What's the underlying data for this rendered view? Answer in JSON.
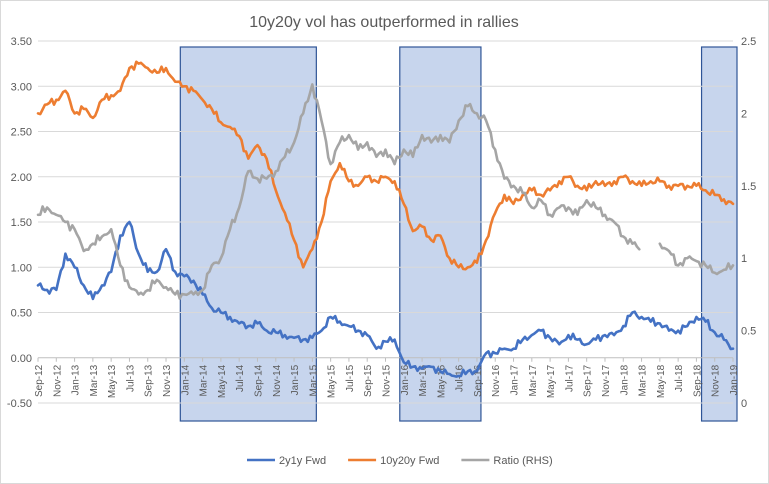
{
  "chart_data": {
    "type": "line",
    "title": "10y20y vol has outperformed  in rallies",
    "xlabel": "",
    "ylabel": "",
    "ylim_left": [
      -0.5,
      3.5
    ],
    "ylim_right": [
      0,
      2.5
    ],
    "y_ticks_left": [
      "-0.50",
      "0.00",
      "0.50",
      "1.00",
      "1.50",
      "2.00",
      "2.50",
      "3.00",
      "3.50"
    ],
    "y_ticks_right": [
      "0",
      "0.5",
      "1",
      "1.5",
      "2",
      "2.5"
    ],
    "x_ticks": [
      "Sep-12",
      "Nov-12",
      "Jan-13",
      "Mar-13",
      "May-13",
      "Jul-13",
      "Sep-13",
      "Nov-13",
      "Jan-14",
      "Mar-14",
      "May-14",
      "Jul-14",
      "Sep-14",
      "Nov-14",
      "Jan-15",
      "Mar-15",
      "May-15",
      "Jul-15",
      "Sep-15",
      "Nov-15",
      "Jan-16",
      "Mar-16",
      "May-16",
      "Jul-16",
      "Sep-16",
      "Nov-16",
      "Jan-17",
      "Mar-17",
      "May-17",
      "Jul-17",
      "Sep-17",
      "Nov-17",
      "Jan-18",
      "Mar-18",
      "May-18",
      "Jul-18",
      "Sep-18",
      "Nov-18",
      "Jan-19"
    ],
    "grid": true,
    "legend_position": "bottom",
    "shaded_periods": [
      [
        "Jan-14",
        "Mar-15"
      ],
      [
        "Jan-16",
        "Sep-16"
      ],
      [
        "Oct-18",
        "Jan-19"
      ]
    ],
    "series": [
      {
        "name": "2y1y Fwd",
        "axis": "left",
        "color": "#4472c4",
        "points": [
          [
            "Sep-12",
            0.8
          ],
          [
            "Oct-12",
            0.75
          ],
          [
            "Nov-12",
            0.75
          ],
          [
            "Dec-12",
            1.15
          ],
          [
            "Jan-13",
            1.0
          ],
          [
            "Feb-13",
            0.8
          ],
          [
            "Mar-13",
            0.65
          ],
          [
            "Apr-13",
            0.8
          ],
          [
            "May-13",
            0.95
          ],
          [
            "Jun-13",
            1.35
          ],
          [
            "Jul-13",
            1.5
          ],
          [
            "Aug-13",
            1.15
          ],
          [
            "Sep-13",
            0.95
          ],
          [
            "Oct-13",
            0.95
          ],
          [
            "Nov-13",
            1.2
          ],
          [
            "Dec-13",
            0.95
          ],
          [
            "Jan-14",
            0.9
          ],
          [
            "Feb-14",
            0.85
          ],
          [
            "Mar-14",
            0.7
          ],
          [
            "Apr-14",
            0.55
          ],
          [
            "May-14",
            0.5
          ],
          [
            "Jun-14",
            0.45
          ],
          [
            "Jul-14",
            0.38
          ],
          [
            "Aug-14",
            0.35
          ],
          [
            "Sep-14",
            0.38
          ],
          [
            "Oct-14",
            0.3
          ],
          [
            "Nov-14",
            0.28
          ],
          [
            "Dec-14",
            0.25
          ],
          [
            "Jan-15",
            0.22
          ],
          [
            "Feb-15",
            0.2
          ],
          [
            "Mar-15",
            0.22
          ],
          [
            "Apr-15",
            0.3
          ],
          [
            "May-15",
            0.45
          ],
          [
            "Jun-15",
            0.4
          ],
          [
            "Jul-15",
            0.35
          ],
          [
            "Aug-15",
            0.3
          ],
          [
            "Sep-15",
            0.25
          ],
          [
            "Oct-15",
            0.1
          ],
          [
            "Nov-15",
            0.18
          ],
          [
            "Dec-15",
            0.2
          ],
          [
            "Jan-16",
            -0.05
          ],
          [
            "Feb-16",
            -0.1
          ],
          [
            "Mar-16",
            -0.12
          ],
          [
            "Apr-16",
            -0.1
          ],
          [
            "May-16",
            -0.15
          ],
          [
            "Jun-16",
            -0.18
          ],
          [
            "Jul-16",
            -0.2
          ],
          [
            "Aug-16",
            -0.15
          ],
          [
            "Sep-16",
            -0.15
          ],
          [
            "Oct-16",
            0.05
          ],
          [
            "Nov-16",
            0.05
          ],
          [
            "Dec-16",
            0.1
          ],
          [
            "Jan-17",
            0.1
          ],
          [
            "Feb-17",
            0.2
          ],
          [
            "Mar-17",
            0.25
          ],
          [
            "Apr-17",
            0.3
          ],
          [
            "May-17",
            0.22
          ],
          [
            "Jun-17",
            0.15
          ],
          [
            "Jul-17",
            0.25
          ],
          [
            "Aug-17",
            0.2
          ],
          [
            "Sep-17",
            0.15
          ],
          [
            "Oct-17",
            0.2
          ],
          [
            "Nov-17",
            0.25
          ],
          [
            "Dec-17",
            0.25
          ],
          [
            "Jan-18",
            0.35
          ],
          [
            "Feb-18",
            0.5
          ],
          [
            "Mar-18",
            0.45
          ],
          [
            "Apr-18",
            0.4
          ],
          [
            "May-18",
            0.38
          ],
          [
            "Jun-18",
            0.3
          ],
          [
            "Jul-18",
            0.3
          ],
          [
            "Aug-18",
            0.35
          ],
          [
            "Sep-18",
            0.45
          ],
          [
            "Oct-18",
            0.4
          ],
          [
            "Nov-18",
            0.28
          ],
          [
            "Dec-18",
            0.2
          ],
          [
            "Jan-19",
            0.1
          ]
        ]
      },
      {
        "name": "10y20y Fwd",
        "axis": "left",
        "color": "#ed7d31",
        "points": [
          [
            "Sep-12",
            2.7
          ],
          [
            "Oct-12",
            2.8
          ],
          [
            "Nov-12",
            2.85
          ],
          [
            "Dec-12",
            2.95
          ],
          [
            "Jan-13",
            2.7
          ],
          [
            "Feb-13",
            2.75
          ],
          [
            "Mar-13",
            2.65
          ],
          [
            "Apr-13",
            2.85
          ],
          [
            "May-13",
            2.9
          ],
          [
            "Jun-13",
            2.95
          ],
          [
            "Jul-13",
            3.2
          ],
          [
            "Aug-13",
            3.25
          ],
          [
            "Sep-13",
            3.2
          ],
          [
            "Oct-13",
            3.15
          ],
          [
            "Nov-13",
            3.2
          ],
          [
            "Dec-13",
            3.05
          ],
          [
            "Jan-14",
            3.0
          ],
          [
            "Feb-14",
            2.95
          ],
          [
            "Mar-14",
            2.85
          ],
          [
            "Apr-14",
            2.75
          ],
          [
            "May-14",
            2.6
          ],
          [
            "Jun-14",
            2.55
          ],
          [
            "Jul-14",
            2.45
          ],
          [
            "Aug-14",
            2.2
          ],
          [
            "Sep-14",
            2.35
          ],
          [
            "Oct-14",
            2.2
          ],
          [
            "Nov-14",
            1.85
          ],
          [
            "Dec-14",
            1.6
          ],
          [
            "Jan-15",
            1.3
          ],
          [
            "Feb-15",
            1.0
          ],
          [
            "Mar-15",
            1.2
          ],
          [
            "Apr-15",
            1.5
          ],
          [
            "May-15",
            1.95
          ],
          [
            "Jun-15",
            2.15
          ],
          [
            "Jul-15",
            1.95
          ],
          [
            "Aug-15",
            1.9
          ],
          [
            "Sep-15",
            2.0
          ],
          [
            "Oct-15",
            1.95
          ],
          [
            "Nov-15",
            2.0
          ],
          [
            "Dec-15",
            1.95
          ],
          [
            "Jan-16",
            1.7
          ],
          [
            "Feb-16",
            1.4
          ],
          [
            "Mar-16",
            1.45
          ],
          [
            "Apr-16",
            1.3
          ],
          [
            "May-16",
            1.35
          ],
          [
            "Jun-16",
            1.1
          ],
          [
            "Jul-16",
            1.0
          ],
          [
            "Aug-16",
            1.0
          ],
          [
            "Sep-16",
            1.05
          ],
          [
            "Oct-16",
            1.3
          ],
          [
            "Nov-16",
            1.6
          ],
          [
            "Dec-16",
            1.8
          ],
          [
            "Jan-17",
            1.7
          ],
          [
            "Feb-17",
            1.8
          ],
          [
            "Mar-17",
            1.85
          ],
          [
            "Apr-17",
            1.8
          ],
          [
            "May-17",
            1.85
          ],
          [
            "Jun-17",
            1.95
          ],
          [
            "Jul-17",
            2.0
          ],
          [
            "Aug-17",
            1.9
          ],
          [
            "Sep-17",
            1.85
          ],
          [
            "Oct-17",
            1.95
          ],
          [
            "Nov-17",
            1.9
          ],
          [
            "Dec-17",
            1.95
          ],
          [
            "Jan-18",
            2.0
          ],
          [
            "Feb-18",
            1.95
          ],
          [
            "Mar-18",
            1.9
          ],
          [
            "Apr-18",
            1.95
          ],
          [
            "May-18",
            1.95
          ],
          [
            "Jun-18",
            1.9
          ],
          [
            "Jul-18",
            1.9
          ],
          [
            "Aug-18",
            1.9
          ],
          [
            "Sep-18",
            1.9
          ],
          [
            "Oct-18",
            1.85
          ],
          [
            "Nov-18",
            1.8
          ],
          [
            "Dec-18",
            1.75
          ],
          [
            "Jan-19",
            1.7
          ]
        ]
      },
      {
        "name": "Ratio (RHS)",
        "axis": "right",
        "color": "#a5a5a5",
        "points": [
          [
            "Sep-12",
            1.3
          ],
          [
            "Oct-12",
            1.35
          ],
          [
            "Nov-12",
            1.3
          ],
          [
            "Dec-12",
            1.25
          ],
          [
            "Jan-13",
            1.2
          ],
          [
            "Feb-13",
            1.05
          ],
          [
            "Mar-13",
            1.1
          ],
          [
            "Apr-13",
            1.15
          ],
          [
            "May-13",
            1.2
          ],
          [
            "Jun-13",
            0.95
          ],
          [
            "Jul-13",
            0.8
          ],
          [
            "Aug-13",
            0.75
          ],
          [
            "Sep-13",
            0.78
          ],
          [
            "Oct-13",
            0.85
          ],
          [
            "Nov-13",
            0.8
          ],
          [
            "Dec-13",
            0.75
          ],
          [
            "Jan-14",
            0.75
          ],
          [
            "Feb-14",
            0.75
          ],
          [
            "Mar-14",
            0.78
          ],
          [
            "Apr-14",
            0.95
          ],
          [
            "May-14",
            1.0
          ],
          [
            "Jun-14",
            1.2
          ],
          [
            "Jul-14",
            1.35
          ],
          [
            "Aug-14",
            1.6
          ],
          [
            "Sep-14",
            1.55
          ],
          [
            "Oct-14",
            1.55
          ],
          [
            "Nov-14",
            1.6
          ],
          [
            "Dec-14",
            1.7
          ],
          [
            "Jan-15",
            1.8
          ],
          [
            "Feb-15",
            2.0
          ],
          [
            "Mar-15",
            2.2
          ],
          [
            "Apr-15",
            1.95
          ],
          [
            "May-15",
            1.65
          ],
          [
            "Jun-15",
            1.8
          ],
          [
            "Jul-15",
            1.85
          ],
          [
            "Aug-15",
            1.75
          ],
          [
            "Sep-15",
            1.8
          ],
          [
            "Oct-15",
            1.7
          ],
          [
            "Nov-15",
            1.75
          ],
          [
            "Dec-15",
            1.65
          ],
          [
            "Jan-16",
            1.75
          ],
          [
            "Feb-16",
            1.7
          ],
          [
            "Mar-16",
            1.85
          ],
          [
            "Apr-16",
            1.8
          ],
          [
            "May-16",
            1.85
          ],
          [
            "Jun-16",
            1.8
          ],
          [
            "Jul-16",
            1.95
          ],
          [
            "Aug-16",
            2.05
          ],
          [
            "Sep-16",
            2.0
          ],
          [
            "Oct-16",
            1.95
          ],
          [
            "Nov-16",
            1.75
          ],
          [
            "Dec-16",
            1.55
          ],
          [
            "Jan-17",
            1.5
          ],
          [
            "Feb-17",
            1.45
          ],
          [
            "Mar-17",
            1.35
          ],
          [
            "Apr-17",
            1.4
          ],
          [
            "May-17",
            1.3
          ],
          [
            "Jun-17",
            1.35
          ],
          [
            "Jul-17",
            1.35
          ],
          [
            "Aug-17",
            1.3
          ],
          [
            "Sep-17",
            1.4
          ],
          [
            "Oct-17",
            1.35
          ],
          [
            "Nov-17",
            1.3
          ],
          [
            "Dec-17",
            1.25
          ],
          [
            "Jan-18",
            1.15
          ],
          [
            "Feb-18",
            1.1
          ],
          [
            "Mar-18",
            1.05
          ],
          [
            "Apr-18",
            null
          ],
          [
            "May-18",
            1.1
          ],
          [
            "Jun-18",
            1.05
          ],
          [
            "Jul-18",
            0.95
          ],
          [
            "Aug-18",
            1.0
          ],
          [
            "Sep-18",
            0.98
          ],
          [
            "Oct-18",
            0.95
          ],
          [
            "Nov-18",
            0.9
          ],
          [
            "Dec-18",
            0.92
          ],
          [
            "Jan-19",
            0.95
          ]
        ]
      }
    ]
  }
}
